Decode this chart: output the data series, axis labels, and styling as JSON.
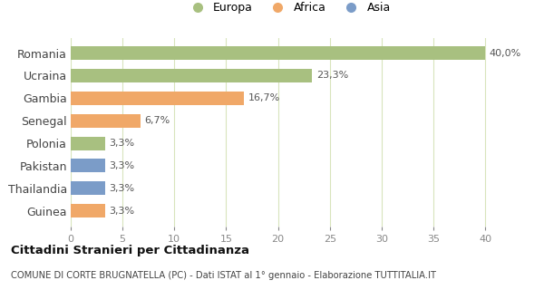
{
  "categories": [
    "Guinea",
    "Thailandia",
    "Pakistan",
    "Polonia",
    "Senegal",
    "Gambia",
    "Ucraina",
    "Romania"
  ],
  "values": [
    3.3,
    3.3,
    3.3,
    3.3,
    6.7,
    16.7,
    23.3,
    40.0
  ],
  "colors": [
    "#f0a868",
    "#7b9cc8",
    "#7b9cc8",
    "#a8c080",
    "#f0a868",
    "#f0a868",
    "#a8c080",
    "#a8c080"
  ],
  "labels": [
    "3,3%",
    "3,3%",
    "3,3%",
    "3,3%",
    "6,7%",
    "16,7%",
    "23,3%",
    "40,0%"
  ],
  "legend": [
    {
      "label": "Europa",
      "color": "#a8c080"
    },
    {
      "label": "Africa",
      "color": "#f0a868"
    },
    {
      "label": "Asia",
      "color": "#7b9cc8"
    }
  ],
  "xlim": [
    0,
    42
  ],
  "xticks": [
    0,
    5,
    10,
    15,
    20,
    25,
    30,
    35,
    40
  ],
  "title_main": "Cittadini Stranieri per Cittadinanza",
  "title_sub": "COMUNE DI CORTE BRUGNATELLA (PC) - Dati ISTAT al 1° gennaio - Elaborazione TUTTITALIA.IT",
  "background_color": "#ffffff",
  "plot_background": "#ffffff",
  "grid_color": "#d8e4bc",
  "bar_height": 0.6,
  "label_fontsize": 8,
  "tick_label_fontsize": 8
}
